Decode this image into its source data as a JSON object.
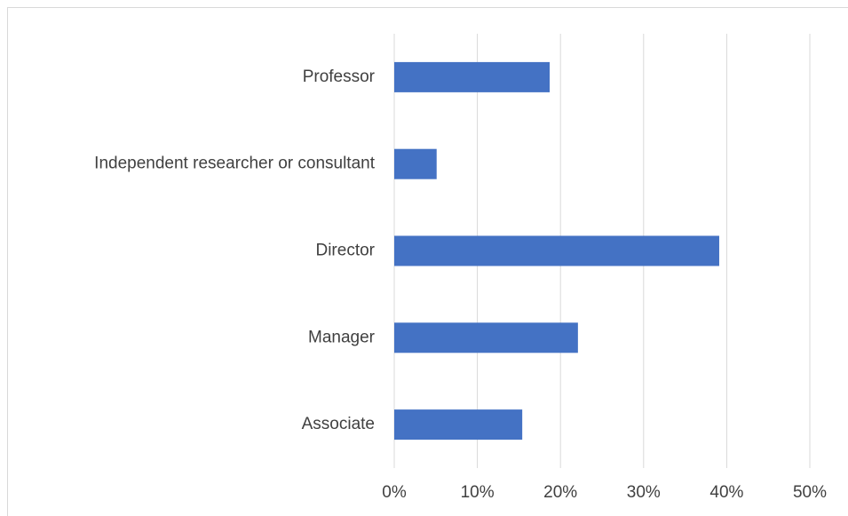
{
  "chart_data": {
    "type": "bar",
    "orientation": "horizontal",
    "categories": [
      "Professor",
      "Independent researcher or consultant",
      "Director",
      "Manager",
      "Associate"
    ],
    "values": [
      18.7,
      5.1,
      39.1,
      22.1,
      15.4
    ],
    "color": "#4472c4",
    "xlim": [
      0,
      50
    ],
    "xticks": [
      {
        "value": 0,
        "label": "0%"
      },
      {
        "value": 10,
        "label": "10%"
      },
      {
        "value": 20,
        "label": "20%"
      },
      {
        "value": 30,
        "label": "30%"
      },
      {
        "value": 40,
        "label": "40%"
      },
      {
        "value": 50,
        "label": "50%"
      }
    ],
    "grid": true
  }
}
